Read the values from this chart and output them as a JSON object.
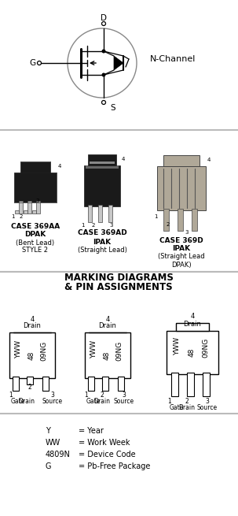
{
  "bg_color": "#ebebeb",
  "white": "#ffffff",
  "black": "#000000",
  "dark": "#1a1a1a",
  "gray_lead": "#c8c8c8",
  "gray_pkg3": "#b0a898",
  "section1_label": "N-Channel",
  "section3_title1": "MARKING DIAGRAMS",
  "section3_title2": "& PIN ASSIGNMENTS",
  "legend": [
    {
      "sym": "Y",
      "desc": "= Year"
    },
    {
      "sym": "WW",
      "desc": "= Work Week"
    },
    {
      "sym": "4809N",
      "desc": "= Device Code"
    },
    {
      "sym": "G",
      "desc": "= Pb-Free Package"
    }
  ],
  "sep_color": "#bbbbbb",
  "case1_name": "CASE 369AA",
  "case1_sub": [
    "DPAK",
    "(Bent Lead)",
    "STYLE 2"
  ],
  "case2_name": "CASE 369AD",
  "case2_sub": [
    "IPAK",
    "(Straight Lead)"
  ],
  "case3_name": "CASE 369D",
  "case3_sub": [
    "IPAK",
    "(Straight Lead",
    "DPAK)"
  ]
}
